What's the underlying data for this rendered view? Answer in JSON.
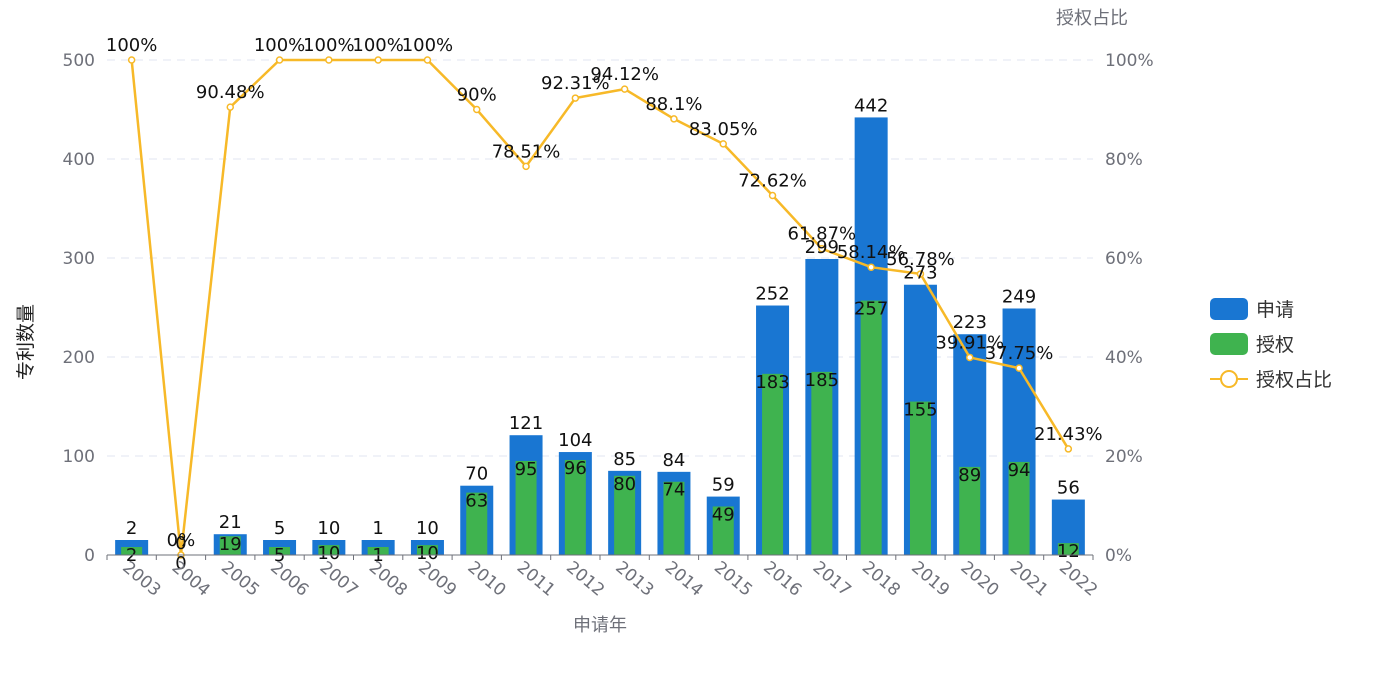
{
  "chart_data": {
    "type": "bar",
    "xlabel": "申请年",
    "ylabel": "专利数量",
    "y2label": "授权占比",
    "ylim": [
      0,
      500
    ],
    "y2lim": [
      0,
      100
    ],
    "yticks": [
      "0",
      "100",
      "200",
      "300",
      "400",
      "500"
    ],
    "y2ticks": [
      "0%",
      "20%",
      "40%",
      "60%",
      "80%",
      "100%"
    ],
    "categories": [
      "2003",
      "2004",
      "2005",
      "2006",
      "2007",
      "2008",
      "2009",
      "2010",
      "2011",
      "2012",
      "2013",
      "2014",
      "2015",
      "2016",
      "2017",
      "2018",
      "2019",
      "2020",
      "2021",
      "2022"
    ],
    "series": [
      {
        "name": "申请",
        "type": "bar",
        "color": "#1976d2",
        "values": [
          2,
          0,
          21,
          5,
          10,
          1,
          10,
          70,
          121,
          104,
          85,
          84,
          59,
          252,
          299,
          442,
          273,
          223,
          249,
          56
        ]
      },
      {
        "name": "授权",
        "type": "bar",
        "color": "#3fb34f",
        "values": [
          2,
          0,
          19,
          5,
          10,
          1,
          10,
          63,
          95,
          96,
          80,
          74,
          49,
          183,
          185,
          257,
          155,
          89,
          94,
          12
        ]
      },
      {
        "name": "授权占比",
        "type": "line",
        "axis": "right",
        "color": "#f7b928",
        "values": [
          100,
          0,
          90.48,
          100,
          100,
          100,
          100,
          90,
          78.51,
          92.31,
          94.12,
          88.1,
          83.05,
          72.62,
          61.87,
          58.14,
          56.78,
          39.91,
          37.75,
          21.43
        ],
        "labels": [
          "100%",
          "0%",
          "90.48%",
          "100%",
          "100%",
          "100%",
          "100%",
          "90%",
          "78.51%",
          "92.31%",
          "94.12%",
          "88.1%",
          "83.05%",
          "72.62%",
          "61.87%",
          "58.14%",
          "56.78%",
          "39.91%",
          "37.75%",
          "21.43%"
        ]
      }
    ],
    "grid": true,
    "legend": "right"
  }
}
